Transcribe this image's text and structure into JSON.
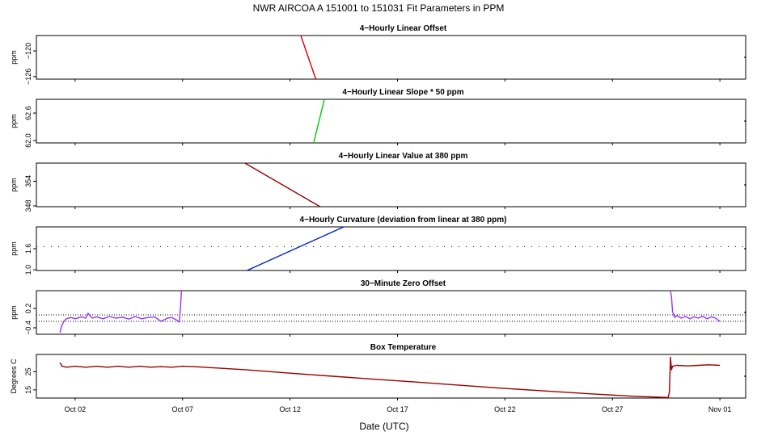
{
  "figure": {
    "title": "NWR   AIRCOA A   151001 to 151031   Fit Parameters in PPM",
    "xlabel": "Date (UTC)",
    "x_ticks": [
      {
        "label": "Oct 02",
        "day": 2
      },
      {
        "label": "Oct 07",
        "day": 7
      },
      {
        "label": "Oct 12",
        "day": 12
      },
      {
        "label": "Oct 17",
        "day": 17
      },
      {
        "label": "Oct 22",
        "day": 22
      },
      {
        "label": "Oct 27",
        "day": 27
      },
      {
        "label": "Nov 01",
        "day": 32
      }
    ],
    "xlim_days": [
      0.2,
      33.2
    ]
  },
  "chart_data": [
    {
      "type": "line",
      "title": "4−Hourly Linear Offset",
      "ylabel": "ppm",
      "ylim": [
        -126.6,
        -116.4
      ],
      "y_ticks": [
        {
          "label": "−126",
          "value": -126
        },
        {
          "label": "−120",
          "value": -120
        }
      ],
      "color": "#dd0000",
      "series": [
        {
          "x": [
            12.5,
            13.2
          ],
          "y": [
            -116.4,
            -126.6
          ]
        }
      ],
      "hlines": []
    },
    {
      "type": "line",
      "title": "4−Hourly Linear Slope * 50 ppm",
      "ylabel": "ppm",
      "ylim": [
        61.95,
        62.9
      ],
      "y_ticks": [
        {
          "label": "62.0",
          "value": 62.0
        },
        {
          "label": "62.6",
          "value": 62.6
        }
      ],
      "color": "#00cc00",
      "series": [
        {
          "x": [
            13.1,
            13.6
          ],
          "y": [
            61.95,
            62.9
          ]
        }
      ],
      "hlines": []
    },
    {
      "type": "line",
      "title": "4−Hourly Linear Value at 380 ppm",
      "ylabel": "ppm",
      "ylim": [
        347.8,
        358.4
      ],
      "y_ticks": [
        {
          "label": "348",
          "value": 348
        },
        {
          "label": "354",
          "value": 354
        }
      ],
      "color": "#990000",
      "series": [
        {
          "x": [
            9.9,
            13.4
          ],
          "y": [
            358.4,
            347.8
          ]
        }
      ],
      "hlines": []
    },
    {
      "type": "line",
      "title": "4−Hourly Curvature (deviation from linear at 380 ppm)",
      "ylabel": "ppm",
      "ylim": [
        0.98,
        2.22
      ],
      "y_ticks": [
        {
          "label": "1.0",
          "value": 1.0
        },
        {
          "label": "1.6",
          "value": 1.6
        }
      ],
      "color": "#0022cc",
      "series": [
        {
          "x": [
            10.0,
            14.5
          ],
          "y": [
            0.98,
            2.22
          ]
        }
      ],
      "hlines": [
        {
          "value": 1.66,
          "style": "dotted-sparse"
        }
      ]
    },
    {
      "type": "line",
      "title": "30−Minute Zero Offset",
      "ylabel": "ppm",
      "ylim": [
        -0.6,
        0.75
      ],
      "y_ticks": [
        {
          "label": "−0.4",
          "value": -0.4
        },
        {
          "label": "0.2",
          "value": 0.2
        }
      ],
      "color": "#9933ff",
      "series": [
        {
          "x": [
            1.3,
            1.35,
            1.4,
            1.5,
            1.6,
            1.8,
            2.0,
            2.3,
            2.5,
            2.6,
            2.8,
            3.0,
            3.3,
            3.6,
            3.9,
            4.2,
            4.5,
            4.8,
            5.1,
            5.4,
            5.7,
            6.0,
            6.3,
            6.5,
            6.7,
            6.85,
            6.9,
            6.95
          ],
          "y": [
            -0.55,
            -0.4,
            -0.3,
            -0.18,
            -0.12,
            -0.08,
            -0.12,
            -0.06,
            -0.1,
            0.05,
            -0.1,
            -0.06,
            -0.12,
            -0.05,
            -0.1,
            -0.07,
            -0.13,
            -0.05,
            -0.12,
            -0.08,
            -0.06,
            -0.2,
            -0.1,
            -0.08,
            -0.15,
            -0.22,
            0.2,
            0.75
          ]
        },
        {
          "x": [
            29.7,
            29.75,
            29.8,
            29.9,
            30.0,
            30.2,
            30.4,
            30.6,
            30.8,
            31.0,
            31.2,
            31.4,
            31.6,
            31.8,
            32.0
          ],
          "y": [
            0.75,
            0.55,
            0.1,
            -0.08,
            -0.02,
            -0.1,
            -0.05,
            -0.12,
            -0.06,
            -0.1,
            -0.04,
            -0.12,
            -0.06,
            -0.1,
            -0.2
          ]
        }
      ],
      "hlines": [
        {
          "value": 0.0,
          "style": "dotted"
        },
        {
          "value": -0.2,
          "style": "dotted"
        }
      ]
    },
    {
      "type": "line",
      "title": "Box Temperature",
      "ylabel": "Degrees C",
      "ylim": [
        10.5,
        34.5
      ],
      "y_ticks": [
        {
          "label": "15",
          "value": 15
        },
        {
          "label": "25",
          "value": 25
        }
      ],
      "color": "#990000",
      "series": [
        {
          "x": [
            1.3,
            1.4,
            1.6,
            2.0,
            2.5,
            3.0,
            3.5,
            4.0,
            4.5,
            5.0,
            5.5,
            6.0,
            6.5,
            7.0,
            7.5,
            8.0,
            10.0,
            12.0,
            14.0,
            16.0,
            18.0,
            20.0,
            22.0,
            24.0,
            26.0,
            28.0,
            29.6,
            29.65,
            29.7,
            29.75,
            29.8,
            30.0,
            30.5,
            31.0,
            31.5,
            32.0
          ],
          "y": [
            30,
            28,
            27.5,
            28,
            27.5,
            28,
            27.5,
            28,
            27.5,
            28,
            27.5,
            27.8,
            27.5,
            28,
            27.8,
            27.5,
            26,
            24.2,
            22.5,
            20.8,
            19.2,
            17.5,
            15.8,
            14.3,
            12.8,
            11.5,
            10.8,
            14,
            33,
            26,
            28,
            28.5,
            28.2,
            28.5,
            28.8,
            28.5
          ]
        }
      ],
      "hlines": []
    }
  ]
}
